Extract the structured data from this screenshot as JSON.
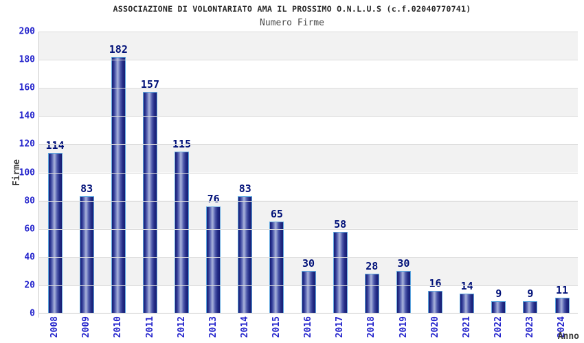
{
  "chart_data": {
    "type": "bar",
    "title": "ASSOCIAZIONE DI VOLONTARIATO AMA IL PROSSIMO O.N.L.U.S (c.f.02040770741)",
    "subtitle": "Numero Firme",
    "xlabel": "Anno",
    "ylabel": "Firme",
    "categories": [
      "2008",
      "2009",
      "2010",
      "2011",
      "2012",
      "2013",
      "2014",
      "2015",
      "2016",
      "2017",
      "2018",
      "2019",
      "2020",
      "2021",
      "2022",
      "2023",
      "2024"
    ],
    "values": [
      114,
      83,
      182,
      157,
      115,
      76,
      83,
      65,
      30,
      58,
      28,
      30,
      16,
      14,
      9,
      9,
      11
    ],
    "ylim": [
      0,
      200
    ],
    "yticks": [
      0,
      20,
      40,
      60,
      80,
      100,
      120,
      140,
      160,
      180,
      200
    ],
    "grid": "horizontal-bands",
    "legend": "none",
    "colors": {
      "title": "#2a2a2a",
      "subtitle": "#4a4a4a",
      "axis_label": "#3a3a3a",
      "tick_label": "#2424cc",
      "value_label": "#001078",
      "band_gray": "#f2f2f2",
      "grid_line": "#dcdcdc",
      "axis_line": "#c9c9c9",
      "bar_dark": "#161c72",
      "bar_light": "#aab3da",
      "bar_border": "#5fa8e0"
    }
  }
}
